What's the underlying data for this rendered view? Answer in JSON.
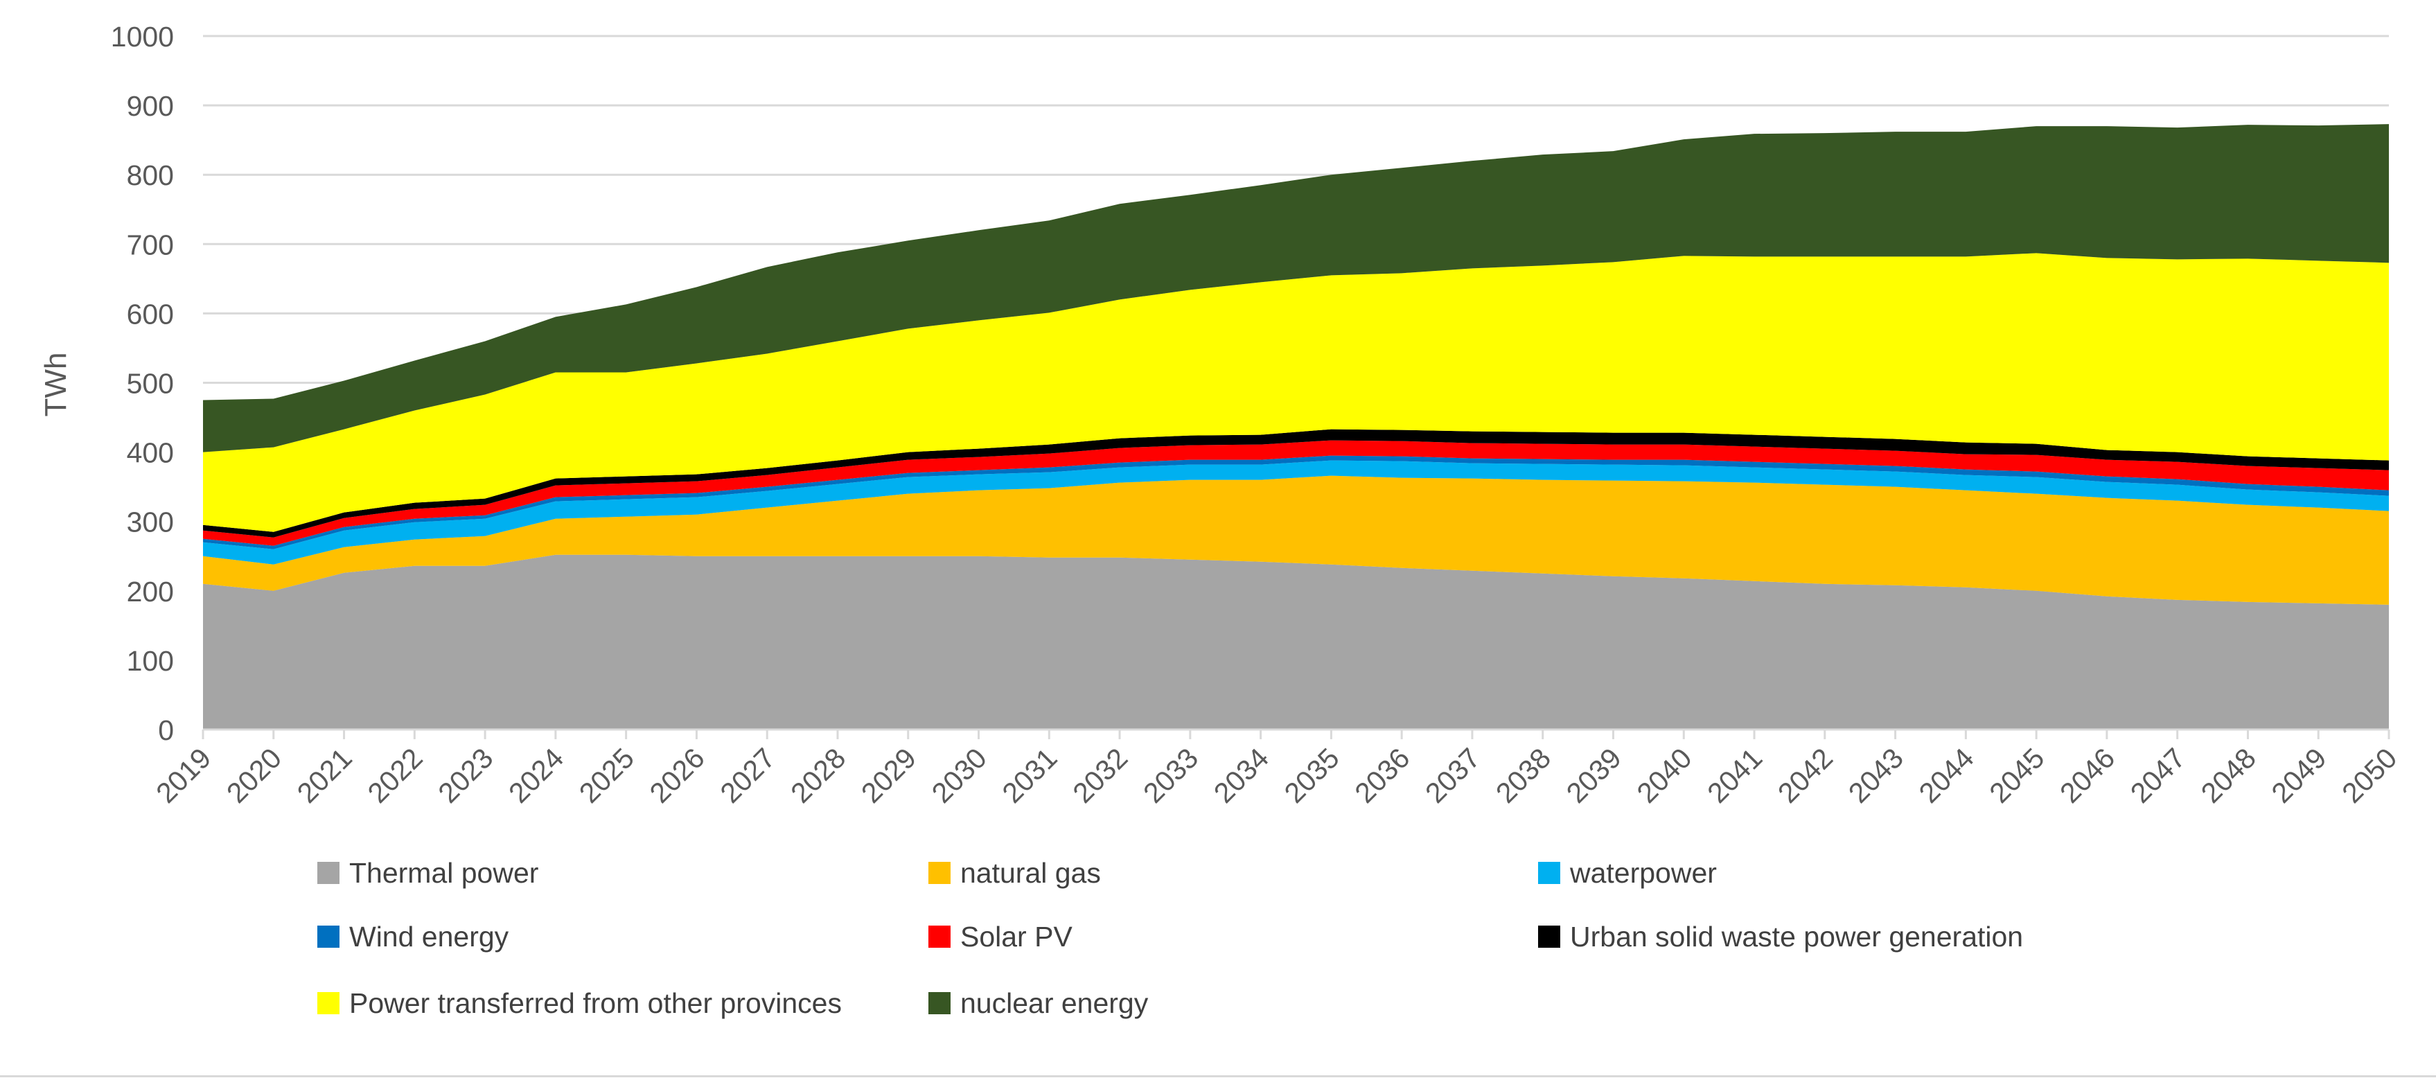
{
  "chart_data": {
    "type": "area",
    "stacked": true,
    "ylabel": "TWh",
    "xlabel": "",
    "ylim": [
      0,
      1000
    ],
    "yticks": [
      0,
      100,
      200,
      300,
      400,
      500,
      600,
      700,
      800,
      900,
      1000
    ],
    "grid": "horizontal",
    "legend_position": "bottom",
    "x": [
      "2019",
      "2020",
      "2021",
      "2022",
      "2023",
      "2024",
      "2025",
      "2026",
      "2027",
      "2028",
      "2029",
      "2030",
      "2031",
      "2032",
      "2033",
      "2034",
      "2035",
      "2036",
      "2037",
      "2038",
      "2039",
      "2040",
      "2041",
      "2042",
      "2043",
      "2044",
      "2045",
      "2046",
      "2047",
      "2048",
      "2049",
      "2050"
    ],
    "series": [
      {
        "name": "Thermal power",
        "color": "#A5A5A5",
        "values": [
          210,
          200,
          226,
          236,
          236,
          252,
          252,
          250,
          250,
          250,
          250,
          250,
          248,
          248,
          245,
          242,
          238,
          233,
          229,
          225,
          221,
          218,
          214,
          210,
          208,
          205,
          200,
          192,
          187,
          184,
          182,
          180
        ]
      },
      {
        "name": "natural gas",
        "color": "#FFC000",
        "values": [
          40,
          38,
          37,
          38,
          43,
          52,
          55,
          60,
          70,
          80,
          90,
          95,
          100,
          108,
          115,
          118,
          128,
          130,
          133,
          135,
          138,
          140,
          142,
          143,
          142,
          140,
          140,
          142,
          143,
          140,
          138,
          135
        ]
      },
      {
        "name": "waterpower",
        "color": "#00B0F0",
        "values": [
          20,
          22,
          24,
          25,
          25,
          25,
          25,
          25,
          24,
          24,
          24,
          23,
          23,
          22,
          22,
          22,
          22,
          24,
          22,
          23,
          23,
          23,
          22,
          22,
          22,
          22,
          24,
          23,
          23,
          22,
          22,
          22
        ]
      },
      {
        "name": "Wind energy",
        "color": "#0070C0",
        "values": [
          5,
          5,
          5,
          5,
          5,
          6,
          6,
          6,
          6,
          6,
          6,
          6,
          7,
          7,
          7,
          7,
          7,
          7,
          7,
          7,
          7,
          8,
          8,
          8,
          8,
          8,
          8,
          8,
          8,
          8,
          8,
          8
        ]
      },
      {
        "name": "Solar PV",
        "color": "#FF0000",
        "values": [
          12,
          12,
          13,
          14,
          15,
          17,
          17,
          17,
          17,
          18,
          19,
          19,
          20,
          21,
          21,
          22,
          22,
          22,
          22,
          22,
          22,
          22,
          22,
          22,
          22,
          22,
          24,
          24,
          25,
          26,
          27,
          29
        ]
      },
      {
        "name": "Urban solid waste power generation",
        "color": "#000000",
        "values": [
          8,
          8,
          8,
          9,
          9,
          10,
          10,
          10,
          10,
          10,
          11,
          12,
          13,
          14,
          14,
          14,
          16,
          16,
          17,
          17,
          17,
          17,
          17,
          17,
          17,
          17,
          16,
          14,
          14,
          14,
          14,
          14
        ]
      },
      {
        "name": "Power transferred from other provinces",
        "color": "#FFFF00",
        "values": [
          105,
          122,
          120,
          133,
          150,
          153,
          150,
          160,
          165,
          172,
          178,
          185,
          190,
          200,
          210,
          220,
          222,
          226,
          235,
          240,
          246,
          255,
          257,
          260,
          263,
          268,
          275,
          277,
          278,
          285,
          285,
          285
        ]
      },
      {
        "name": "nuclear energy",
        "color": "#375623",
        "values": [
          75,
          70,
          70,
          72,
          77,
          80,
          98,
          110,
          125,
          128,
          127,
          130,
          133,
          138,
          137,
          140,
          145,
          152,
          155,
          160,
          160,
          168,
          177,
          178,
          180,
          180,
          183,
          190,
          190,
          193,
          195,
          200
        ]
      }
    ]
  }
}
